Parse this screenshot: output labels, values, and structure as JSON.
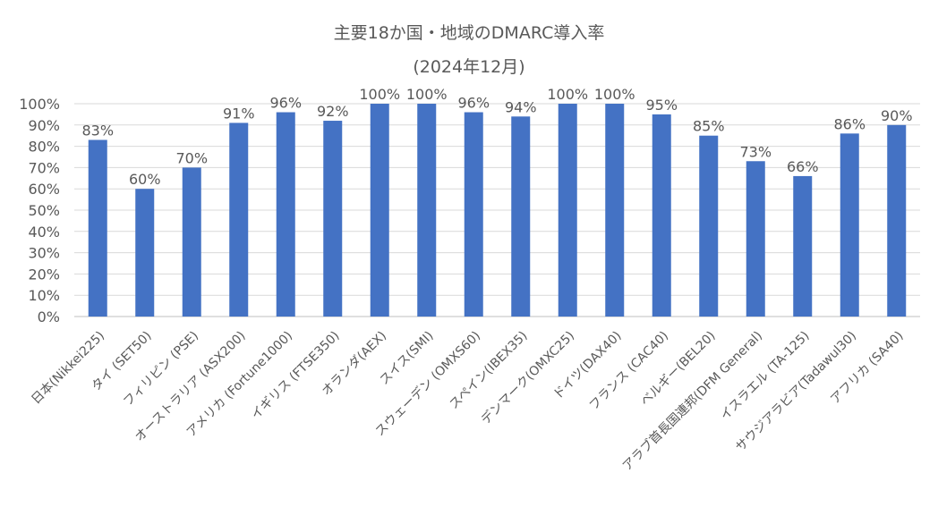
{
  "chart_data": {
    "type": "bar",
    "title": "主要18か国・地域のDMARC導入率",
    "subtitle": "(2024年12月)",
    "categories": [
      "日本(Nikkei225)",
      "タイ (SET50)",
      "フィリピン (PSE)",
      "オーストラリア (ASX200)",
      "アメリカ (Fortune1000)",
      "イギリス (FTSE350)",
      "オランダ(AEX)",
      "スイス(SMI)",
      "スウェーデン (OMXS60)",
      "スペイン(IBEX35)",
      "デンマーク(OMXC25)",
      "ドイツ(DAX40)",
      "フランス (CAC40)",
      "ベルギー(BEL20)",
      "アラブ首長国連邦(DFM General)",
      "イスラエル (TA-125)",
      "サウジアラビア(Tadawul30)",
      "アフリカ (SA40)"
    ],
    "values": [
      83,
      60,
      70,
      91,
      96,
      92,
      100,
      100,
      96,
      94,
      100,
      100,
      95,
      85,
      73,
      66,
      86,
      90
    ],
    "data_labels": [
      "83%",
      "60%",
      "70%",
      "91%",
      "96%",
      "92%",
      "100%",
      "100%",
      "96%",
      "94%",
      "100%",
      "100%",
      "95%",
      "85%",
      "73%",
      "66%",
      "86%",
      "90%"
    ],
    "ylim": [
      0,
      100
    ],
    "yticks": [
      "0%",
      "10%",
      "20%",
      "30%",
      "40%",
      "50%",
      "60%",
      "70%",
      "80%",
      "90%",
      "100%"
    ],
    "xlabel": "",
    "ylabel": "",
    "grid": true,
    "legend": "none",
    "colors": {
      "bar": "#4472C4",
      "grid": "#D9D9D9",
      "text": "#595959",
      "axis": "#BFBFBF"
    }
  }
}
